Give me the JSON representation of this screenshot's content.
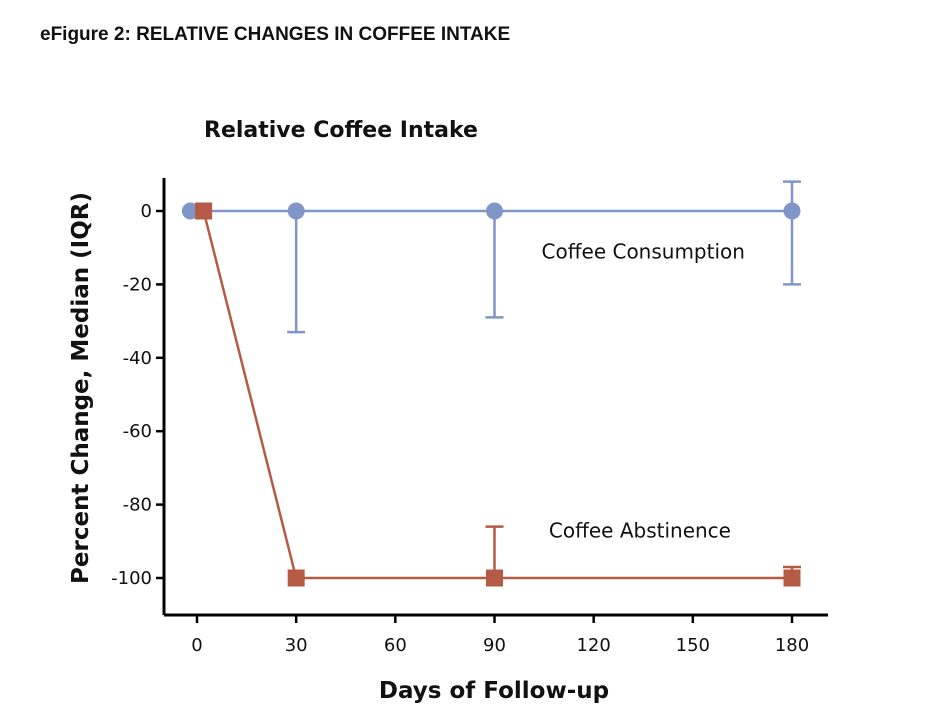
{
  "figure": {
    "label": "eFigure 2:",
    "title": "RELATIVE CHANGES IN COFFEE INTAKE"
  },
  "chart_data": {
    "type": "line",
    "title": "Relative Coffee  Intake",
    "xlabel": "Days of Follow-up",
    "ylabel": "Percent Change, Median  (IQR)",
    "xlim": [
      -5,
      183
    ],
    "ylim": [
      -108,
      9
    ],
    "xticks": [
      0,
      30,
      60,
      90,
      120,
      150,
      180
    ],
    "yticks": [
      0,
      -20,
      -40,
      -60,
      -80,
      -100
    ],
    "series": [
      {
        "name": "Coffee Consumption",
        "color": "#7f96c7",
        "marker": "circle",
        "x": [
          -2,
          30,
          90,
          180
        ],
        "y": [
          0,
          0,
          0,
          0
        ],
        "err_low": [
          0,
          -33,
          -29,
          -20
        ],
        "err_high": [
          0,
          0,
          0,
          8
        ]
      },
      {
        "name": "Coffee Abstinence",
        "color": "#b55a45",
        "marker": "square",
        "x": [
          2,
          30,
          90,
          180
        ],
        "y": [
          0,
          -100,
          -100,
          -100
        ],
        "err_low": [
          0,
          -100,
          -100,
          -100
        ],
        "err_high": [
          0,
          -100,
          -86,
          -97
        ]
      }
    ],
    "annotations": [
      {
        "text": "Coffee Consumption",
        "x": 135,
        "y": -11
      },
      {
        "text": "Coffee Abstinence",
        "x": 134,
        "y": -87
      }
    ]
  }
}
